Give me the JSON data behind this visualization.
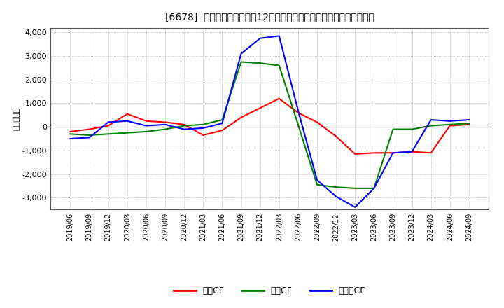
{
  "title": "[6678]  キャッシュフローの12か月移動合計の対前年同期増減額の推移",
  "ylabel": "（百万円）",
  "background_color": "#ffffff",
  "plot_bg_color": "#ffffff",
  "grid_color": "#aaaaaa",
  "ylim": [
    -3500,
    4200
  ],
  "yticks": [
    -3000,
    -2000,
    -1000,
    0,
    1000,
    2000,
    3000,
    4000
  ],
  "x_labels": [
    "2019/06",
    "2019/09",
    "2019/12",
    "2020/03",
    "2020/06",
    "2020/09",
    "2020/12",
    "2021/03",
    "2021/06",
    "2021/09",
    "2021/12",
    "2022/03",
    "2022/06",
    "2022/09",
    "2022/12",
    "2023/03",
    "2023/06",
    "2023/09",
    "2023/12",
    "2024/03",
    "2024/06",
    "2024/09"
  ],
  "series": {
    "営業CF": {
      "color": "#ff0000",
      "values": [
        -200,
        -100,
        50,
        550,
        250,
        200,
        100,
        -350,
        -150,
        400,
        800,
        1200,
        600,
        200,
        -400,
        -1150,
        -1100,
        -1100,
        -1050,
        -1100,
        50,
        100
      ]
    },
    "投資CF": {
      "color": "#008000",
      "values": [
        -300,
        -350,
        -300,
        -250,
        -200,
        -100,
        50,
        100,
        300,
        2750,
        2700,
        2600,
        100,
        -2450,
        -2550,
        -2600,
        -2600,
        -100,
        -100,
        50,
        100,
        150
      ]
    },
    "フリーCF": {
      "color": "#0000ff",
      "values": [
        -500,
        -450,
        200,
        250,
        50,
        100,
        -100,
        -50,
        150,
        3100,
        3750,
        3850,
        700,
        -2250,
        -2950,
        -3400,
        -2600,
        -1100,
        -1050,
        300,
        250,
        300
      ]
    }
  },
  "legend_labels": [
    "営業CF",
    "投資CF",
    "フリーCF"
  ],
  "legend_colors": [
    "#ff0000",
    "#008000",
    "#0000ff"
  ]
}
